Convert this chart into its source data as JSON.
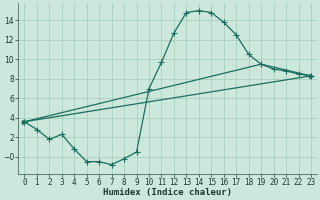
{
  "xlabel": "Humidex (Indice chaleur)",
  "bg_color": "#cce8dc",
  "grid_color": "#aacfbf",
  "line_color": "#1a6e60",
  "xlim": [
    -0.5,
    23.5
  ],
  "ylim": [
    -1.8,
    15.8
  ],
  "xticks": [
    0,
    1,
    2,
    3,
    4,
    5,
    6,
    7,
    8,
    9,
    10,
    11,
    12,
    13,
    14,
    15,
    16,
    17,
    18,
    19,
    20,
    21,
    22,
    23
  ],
  "yticks": [
    0,
    2,
    4,
    6,
    8,
    10,
    12,
    14
  ],
  "series1_x": [
    0,
    1,
    2,
    3,
    4,
    5,
    6,
    7,
    8,
    9,
    10,
    11,
    12,
    13,
    14,
    15,
    16,
    17,
    18,
    19,
    20,
    21,
    22,
    23
  ],
  "series1_y": [
    3.6,
    2.8,
    1.8,
    2.3,
    0.8,
    -0.5,
    -0.5,
    -0.8,
    -0.2,
    0.5,
    7.0,
    9.7,
    12.7,
    14.8,
    15.0,
    14.8,
    13.8,
    12.5,
    10.5,
    9.5,
    9.0,
    8.8,
    8.5,
    8.3
  ],
  "series2_x": [
    0,
    23
  ],
  "series2_y": [
    3.6,
    8.3
  ],
  "series3_x": [
    0,
    19,
    23
  ],
  "series3_y": [
    3.6,
    9.5,
    8.3
  ],
  "marker_size": 2.0,
  "line_width": 0.9,
  "tick_fontsize": 5.5,
  "xlabel_fontsize": 6.5
}
